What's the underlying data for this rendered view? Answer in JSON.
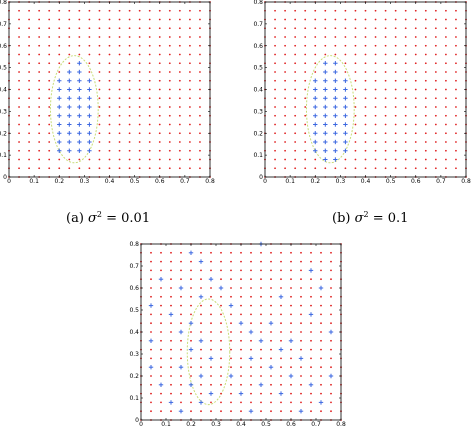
{
  "colors": {
    "outside_marker": "#e02020",
    "inside_marker": "#3a66e0",
    "boundary": "#c8dc78"
  },
  "chart_data": [
    {
      "type": "scatter",
      "caption": {
        "prefix": "(a) ",
        "symbol": "σ",
        "sup": "2",
        "suffix": " = 0.01"
      },
      "xlim": [
        0,
        0.8
      ],
      "ylim": [
        0,
        0.8
      ],
      "xticks": [
        "0",
        "0.1",
        "0.2",
        "0.3",
        "0.4",
        "0.5",
        "0.6",
        "0.7",
        "0.8"
      ],
      "yticks": [
        "0",
        "0.1",
        "0.2",
        "0.3",
        "0.4",
        "0.5",
        "0.6",
        "0.7",
        "0.8"
      ],
      "grid_spacing": 0.04,
      "blue_plus_points": [
        [
          0.2,
          0.12
        ],
        [
          0.24,
          0.12
        ],
        [
          0.28,
          0.12
        ],
        [
          0.32,
          0.12
        ],
        [
          0.2,
          0.16
        ],
        [
          0.24,
          0.16
        ],
        [
          0.28,
          0.16
        ],
        [
          0.32,
          0.16
        ],
        [
          0.2,
          0.2
        ],
        [
          0.24,
          0.2
        ],
        [
          0.28,
          0.2
        ],
        [
          0.32,
          0.2
        ],
        [
          0.2,
          0.24
        ],
        [
          0.24,
          0.24
        ],
        [
          0.28,
          0.24
        ],
        [
          0.32,
          0.24
        ],
        [
          0.2,
          0.28
        ],
        [
          0.24,
          0.28
        ],
        [
          0.28,
          0.28
        ],
        [
          0.32,
          0.28
        ],
        [
          0.2,
          0.32
        ],
        [
          0.24,
          0.32
        ],
        [
          0.28,
          0.32
        ],
        [
          0.32,
          0.32
        ],
        [
          0.2,
          0.36
        ],
        [
          0.24,
          0.36
        ],
        [
          0.28,
          0.36
        ],
        [
          0.32,
          0.36
        ],
        [
          0.2,
          0.4
        ],
        [
          0.24,
          0.4
        ],
        [
          0.28,
          0.4
        ],
        [
          0.32,
          0.4
        ],
        [
          0.2,
          0.44
        ],
        [
          0.24,
          0.44
        ],
        [
          0.28,
          0.44
        ],
        [
          0.32,
          0.44
        ],
        [
          0.24,
          0.48
        ],
        [
          0.28,
          0.48
        ],
        [
          0.28,
          0.52
        ]
      ],
      "boundary": {
        "cx": 0.26,
        "cy": 0.31,
        "rx": 0.095,
        "ry": 0.245
      }
    },
    {
      "type": "scatter",
      "caption": {
        "prefix": "(b) ",
        "symbol": "σ",
        "sup": "2",
        "suffix": " = 0.1"
      },
      "xlim": [
        0,
        0.8
      ],
      "ylim": [
        0,
        0.8
      ],
      "xticks": [
        "0",
        "0.1",
        "0.2",
        "0.3",
        "0.4",
        "0.5",
        "0.6",
        "0.7",
        "0.8"
      ],
      "yticks": [
        "0",
        "0.1",
        "0.2",
        "0.3",
        "0.4",
        "0.5",
        "0.6",
        "0.7",
        "0.8"
      ],
      "grid_spacing": 0.04,
      "blue_plus_points": [
        [
          0.24,
          0.08
        ],
        [
          0.28,
          0.08
        ],
        [
          0.2,
          0.12
        ],
        [
          0.24,
          0.12
        ],
        [
          0.28,
          0.12
        ],
        [
          0.32,
          0.12
        ],
        [
          0.2,
          0.16
        ],
        [
          0.24,
          0.16
        ],
        [
          0.28,
          0.16
        ],
        [
          0.32,
          0.16
        ],
        [
          0.2,
          0.2
        ],
        [
          0.24,
          0.2
        ],
        [
          0.28,
          0.2
        ],
        [
          0.32,
          0.2
        ],
        [
          0.2,
          0.24
        ],
        [
          0.24,
          0.24
        ],
        [
          0.28,
          0.24
        ],
        [
          0.32,
          0.24
        ],
        [
          0.2,
          0.28
        ],
        [
          0.24,
          0.28
        ],
        [
          0.28,
          0.28
        ],
        [
          0.32,
          0.28
        ],
        [
          0.2,
          0.32
        ],
        [
          0.24,
          0.32
        ],
        [
          0.28,
          0.32
        ],
        [
          0.32,
          0.32
        ],
        [
          0.2,
          0.36
        ],
        [
          0.24,
          0.36
        ],
        [
          0.28,
          0.36
        ],
        [
          0.32,
          0.36
        ],
        [
          0.2,
          0.4
        ],
        [
          0.24,
          0.4
        ],
        [
          0.28,
          0.4
        ],
        [
          0.32,
          0.4
        ],
        [
          0.2,
          0.44
        ],
        [
          0.24,
          0.44
        ],
        [
          0.28,
          0.44
        ],
        [
          0.32,
          0.44
        ],
        [
          0.24,
          0.48
        ],
        [
          0.28,
          0.48
        ],
        [
          0.24,
          0.52
        ],
        [
          0.28,
          0.52
        ]
      ],
      "boundary": {
        "cx": 0.26,
        "cy": 0.31,
        "rx": 0.095,
        "ry": 0.245
      }
    },
    {
      "type": "scatter",
      "xlim": [
        0,
        0.8
      ],
      "ylim": [
        0,
        0.8
      ],
      "xticks": [
        "0",
        "0.1",
        "0.2",
        "0.3",
        "0.4",
        "0.5",
        "0.6",
        "0.7",
        "0.8"
      ],
      "yticks": [
        "0",
        "0.1",
        "0.2",
        "0.3",
        "0.4",
        "0.5",
        "0.6",
        "0.7",
        "0.8"
      ],
      "grid_spacing": 0.04,
      "blue_plus_points": [
        [
          0.08,
          0.64
        ],
        [
          0.2,
          0.76
        ],
        [
          0.24,
          0.72
        ],
        [
          0.48,
          0.8
        ],
        [
          0.16,
          0.6
        ],
        [
          0.04,
          0.52
        ],
        [
          0.24,
          0.56
        ],
        [
          0.28,
          0.64
        ],
        [
          0.12,
          0.48
        ],
        [
          0.2,
          0.44
        ],
        [
          0.16,
          0.4
        ],
        [
          0.24,
          0.36
        ],
        [
          0.2,
          0.32
        ],
        [
          0.28,
          0.28
        ],
        [
          0.16,
          0.24
        ],
        [
          0.24,
          0.2
        ],
        [
          0.2,
          0.16
        ],
        [
          0.28,
          0.12
        ],
        [
          0.24,
          0.08
        ],
        [
          0.16,
          0.04
        ],
        [
          0.4,
          0.44
        ],
        [
          0.44,
          0.4
        ],
        [
          0.48,
          0.36
        ],
        [
          0.52,
          0.44
        ],
        [
          0.56,
          0.32
        ],
        [
          0.6,
          0.36
        ],
        [
          0.44,
          0.28
        ],
        [
          0.52,
          0.24
        ],
        [
          0.48,
          0.16
        ],
        [
          0.56,
          0.12
        ],
        [
          0.6,
          0.2
        ],
        [
          0.64,
          0.28
        ],
        [
          0.68,
          0.16
        ],
        [
          0.72,
          0.08
        ],
        [
          0.64,
          0.04
        ],
        [
          0.04,
          0.24
        ],
        [
          0.08,
          0.16
        ],
        [
          0.12,
          0.08
        ],
        [
          0.36,
          0.2
        ],
        [
          0.4,
          0.12
        ],
        [
          0.36,
          0.52
        ],
        [
          0.32,
          0.6
        ],
        [
          0.56,
          0.56
        ],
        [
          0.68,
          0.48
        ],
        [
          0.76,
          0.4
        ],
        [
          0.72,
          0.6
        ],
        [
          0.44,
          0.04
        ],
        [
          0.76,
          0.2
        ],
        [
          0.68,
          0.68
        ],
        [
          0.04,
          0.36
        ]
      ],
      "boundary": {
        "cx": 0.27,
        "cy": 0.31,
        "rx": 0.085,
        "ry": 0.24
      }
    }
  ]
}
